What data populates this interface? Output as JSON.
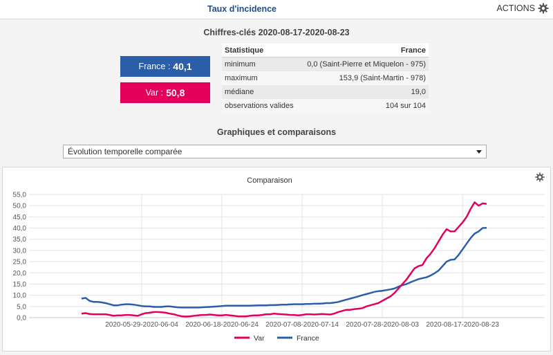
{
  "header": {
    "title": "Taux d'incidence",
    "actions_label": "ACTIONS"
  },
  "key_figures": {
    "title": "Chiffres-clés 2020-08-17-2020-08-23",
    "france": {
      "label": "France : ",
      "value": "40,1"
    },
    "var": {
      "label": "Var : ",
      "value": "50,8"
    },
    "table": {
      "headers": [
        "Statistique",
        "France"
      ],
      "rows": [
        [
          "minimum",
          "0,0 (Saint-Pierre et Miquelon - 975)"
        ],
        [
          "maximum",
          "153,9 (Saint-Martin - 978)"
        ],
        [
          "médiane",
          "19,0"
        ],
        [
          "observations valides",
          "104 sur 104"
        ]
      ]
    }
  },
  "graphs": {
    "title": "Graphiques et comparaisons",
    "select_value": "Évolution temporelle comparée"
  },
  "chart_data": {
    "type": "line",
    "title": "Comparaison",
    "xlabel": "",
    "ylabel": "",
    "ylim": [
      0,
      55
    ],
    "y_ticks": [
      "0,0",
      "5,0",
      "10,0",
      "15,0",
      "20,0",
      "25,0",
      "30,0",
      "35,0",
      "40,0",
      "45,0",
      "50,0",
      "55,0"
    ],
    "x_tick_labels": [
      "2020-05-29-2020-06-04",
      "2020-06-18-2020-06-24",
      "2020-07-08-2020-07-14",
      "2020-07-28-2020-08-03",
      "2020-08-17-2020-08-23"
    ],
    "x_tick_positions": [
      15,
      35,
      55,
      75,
      95
    ],
    "legend": "bottom",
    "grid": true,
    "series": [
      {
        "name": "Var",
        "color": "#e4005a",
        "values": [
          1.8,
          2.0,
          1.6,
          1.5,
          1.5,
          1.5,
          1.5,
          1.2,
          0.8,
          1.0,
          1.0,
          1.2,
          1.2,
          1.0,
          0.8,
          1.5,
          2.0,
          2.2,
          2.5,
          2.5,
          2.4,
          2.2,
          1.8,
          1.5,
          1.0,
          0.6,
          0.5,
          0.6,
          0.8,
          1.0,
          1.2,
          1.2,
          1.4,
          1.2,
          1.0,
          1.0,
          1.2,
          1.0,
          0.8,
          0.6,
          0.6,
          0.6,
          0.8,
          1.0,
          1.0,
          1.2,
          1.5,
          1.5,
          1.8,
          1.6,
          1.5,
          1.4,
          1.2,
          1.2,
          1.0,
          1.2,
          1.5,
          1.5,
          1.4,
          1.5,
          1.6,
          1.5,
          1.4,
          1.8,
          2.5,
          3.0,
          3.5,
          3.5,
          3.8,
          4.0,
          4.2,
          5.0,
          5.5,
          6.0,
          6.5,
          7.5,
          8.5,
          9.5,
          11.0,
          13.0,
          15.0,
          17.0,
          19.5,
          22.0,
          23.0,
          23.5,
          26.5,
          28.5,
          31.0,
          34.0,
          37.0,
          39.5,
          38.5,
          38.5,
          40.5,
          42.5,
          45.0,
          48.5,
          51.5,
          50.0,
          51.0,
          50.8
        ]
      },
      {
        "name": "France",
        "color": "#2a5ea8",
        "values": [
          8.5,
          8.8,
          7.5,
          7.0,
          7.0,
          6.8,
          6.5,
          6.0,
          5.5,
          5.5,
          5.8,
          6.0,
          6.0,
          5.8,
          5.5,
          5.2,
          5.0,
          5.0,
          4.8,
          4.8,
          4.8,
          5.0,
          5.0,
          4.8,
          4.6,
          4.5,
          4.5,
          4.5,
          4.5,
          4.5,
          4.6,
          4.7,
          4.8,
          4.9,
          5.0,
          5.2,
          5.3,
          5.3,
          5.3,
          5.3,
          5.3,
          5.3,
          5.3,
          5.4,
          5.5,
          5.5,
          5.5,
          5.6,
          5.6,
          5.7,
          5.8,
          5.8,
          5.9,
          6.0,
          6.0,
          6.0,
          6.1,
          6.1,
          6.2,
          6.2,
          6.3,
          6.5,
          6.5,
          6.7,
          7.0,
          7.5,
          8.0,
          8.5,
          9.0,
          9.5,
          10.0,
          10.5,
          11.0,
          11.5,
          11.8,
          12.0,
          12.3,
          12.6,
          13.0,
          13.8,
          14.5,
          15.0,
          15.8,
          16.5,
          17.2,
          17.6,
          18.0,
          18.8,
          19.8,
          21.0,
          23.0,
          25.0,
          25.8,
          26.0,
          28.0,
          30.5,
          33.0,
          35.5,
          37.5,
          38.5,
          40.0,
          40.1
        ]
      }
    ]
  }
}
